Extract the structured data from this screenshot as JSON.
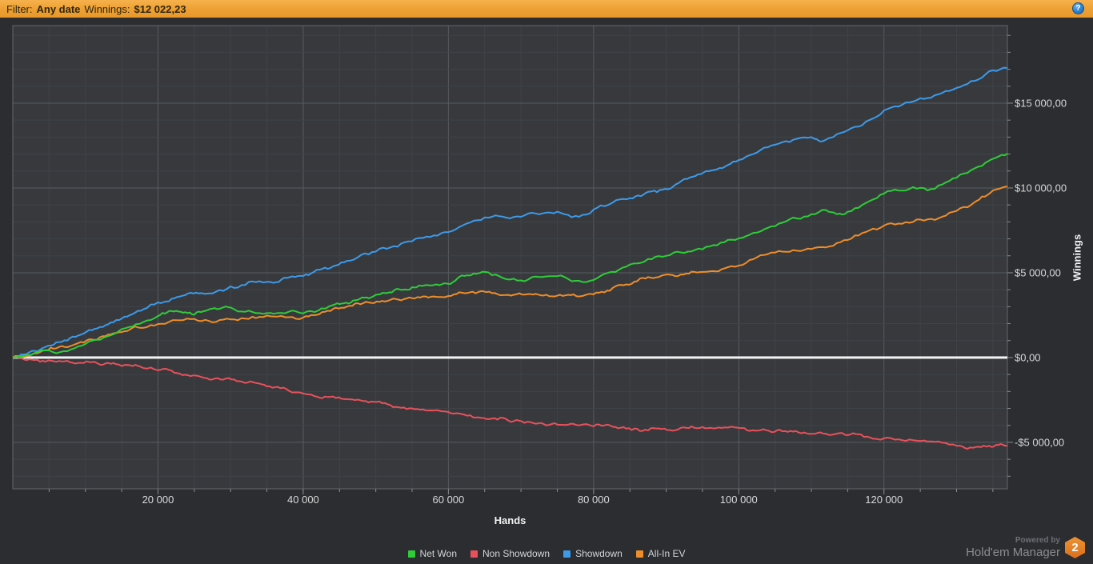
{
  "filter_bar": {
    "label": "Filter:",
    "date_value": "Any date",
    "winnings_label": "Winnings:",
    "winnings_value": "$12 022,23",
    "bar_color": "#eda031",
    "help_icon": "question-mark"
  },
  "chart_data": {
    "type": "line",
    "title": "",
    "xlabel": "Hands",
    "ylabel": "Winnings",
    "xlim": [
      0,
      137000
    ],
    "ylim": [
      -7740,
      19575
    ],
    "x_tick_values": [
      20000,
      40000,
      60000,
      80000,
      100000,
      120000
    ],
    "x_ticks": [
      "20 000",
      "40 000",
      "60 000",
      "80 000",
      "100 000",
      "120 000"
    ],
    "y_tick_values": [
      15000,
      10000,
      5000,
      0,
      -5000
    ],
    "y_ticks": [
      "$15 000,00",
      "$10 000,00",
      "$5 000,00",
      "$0,00",
      "-$5 000,00"
    ],
    "grid": {
      "x_minor_step": 5000,
      "x_major_step": 20000,
      "y_minor_step": 1000,
      "y_major_step": 5000
    },
    "zero_line": true,
    "legend_position": "bottom",
    "colors": {
      "plot_bg": "#37393d",
      "outer_bg": "#2b2d30",
      "grid_minor": "#3f4347",
      "grid_major": "#575b5f",
      "border": "#64686c",
      "zero_line": "#f2f4f4",
      "tick": "#8a8e91"
    },
    "series": [
      {
        "name": "Net Won",
        "color": "#2fcc39",
        "points": [
          [
            0,
            0
          ],
          [
            2000,
            150
          ],
          [
            4000,
            420
          ],
          [
            6000,
            250
          ],
          [
            8000,
            480
          ],
          [
            10000,
            800
          ],
          [
            12000,
            1050
          ],
          [
            14000,
            1400
          ],
          [
            16000,
            1800
          ],
          [
            18000,
            2100
          ],
          [
            20000,
            2450
          ],
          [
            22500,
            2750
          ],
          [
            25000,
            2520
          ],
          [
            27500,
            2880
          ],
          [
            30000,
            2950
          ],
          [
            32000,
            2700
          ],
          [
            34000,
            2620
          ],
          [
            36000,
            2580
          ],
          [
            38000,
            2700
          ],
          [
            40000,
            2600
          ],
          [
            42500,
            2900
          ],
          [
            45000,
            3150
          ],
          [
            47500,
            3400
          ],
          [
            50000,
            3700
          ],
          [
            52500,
            3950
          ],
          [
            55000,
            4150
          ],
          [
            57500,
            4250
          ],
          [
            60000,
            4340
          ],
          [
            62500,
            4850
          ],
          [
            65000,
            5050
          ],
          [
            67000,
            4800
          ],
          [
            69000,
            4650
          ],
          [
            71000,
            4600
          ],
          [
            73000,
            4750
          ],
          [
            75000,
            4800
          ],
          [
            77000,
            4500
          ],
          [
            79000,
            4450
          ],
          [
            80000,
            4575
          ],
          [
            82000,
            5000
          ],
          [
            84000,
            5300
          ],
          [
            86000,
            5550
          ],
          [
            88000,
            5800
          ],
          [
            90000,
            6000
          ],
          [
            92000,
            6200
          ],
          [
            94000,
            6350
          ],
          [
            96000,
            6550
          ],
          [
            98000,
            6800
          ],
          [
            100000,
            7030
          ],
          [
            102000,
            7350
          ],
          [
            104000,
            7650
          ],
          [
            106000,
            7950
          ],
          [
            108000,
            8200
          ],
          [
            110000,
            8450
          ],
          [
            112000,
            8700
          ],
          [
            113500,
            8450
          ],
          [
            115000,
            8600
          ],
          [
            117000,
            9000
          ],
          [
            119000,
            9400
          ],
          [
            120000,
            9670
          ],
          [
            122000,
            9850
          ],
          [
            124000,
            10050
          ],
          [
            126000,
            9850
          ],
          [
            128000,
            10200
          ],
          [
            130000,
            10600
          ],
          [
            132000,
            11050
          ],
          [
            134000,
            11500
          ],
          [
            135500,
            11800
          ],
          [
            137000,
            12022
          ]
        ]
      },
      {
        "name": "Non Showdown",
        "color": "#e8515b",
        "points": [
          [
            0,
            0
          ],
          [
            3000,
            -150
          ],
          [
            6000,
            -250
          ],
          [
            9000,
            -320
          ],
          [
            12000,
            -420
          ],
          [
            15000,
            -500
          ],
          [
            18000,
            -620
          ],
          [
            20000,
            -755
          ],
          [
            23000,
            -950
          ],
          [
            26000,
            -1150
          ],
          [
            29000,
            -1300
          ],
          [
            32000,
            -1500
          ],
          [
            35000,
            -1700
          ],
          [
            38000,
            -1950
          ],
          [
            40000,
            -2120
          ],
          [
            43000,
            -2300
          ],
          [
            46000,
            -2450
          ],
          [
            49000,
            -2650
          ],
          [
            52000,
            -2800
          ],
          [
            55000,
            -3000
          ],
          [
            58000,
            -3120
          ],
          [
            60000,
            -3210
          ],
          [
            63000,
            -3400
          ],
          [
            66000,
            -3600
          ],
          [
            69000,
            -3750
          ],
          [
            72000,
            -3900
          ],
          [
            75000,
            -3950
          ],
          [
            78000,
            -4000
          ],
          [
            80000,
            -4057
          ],
          [
            83000,
            -4100
          ],
          [
            86000,
            -4200
          ],
          [
            89000,
            -4180
          ],
          [
            92000,
            -4150
          ],
          [
            95000,
            -4100
          ],
          [
            98000,
            -4120
          ],
          [
            100000,
            -4150
          ],
          [
            103000,
            -4280
          ],
          [
            106000,
            -4350
          ],
          [
            109000,
            -4420
          ],
          [
            112000,
            -4500
          ],
          [
            115000,
            -4580
          ],
          [
            118000,
            -4700
          ],
          [
            120000,
            -4765
          ],
          [
            122000,
            -4820
          ],
          [
            124000,
            -4870
          ],
          [
            126000,
            -4950
          ],
          [
            128000,
            -5020
          ],
          [
            130000,
            -5200
          ],
          [
            131500,
            -5380
          ],
          [
            133000,
            -5260
          ],
          [
            134500,
            -5200
          ],
          [
            137000,
            -5188
          ]
        ]
      },
      {
        "name": "Showdown",
        "color": "#3d9ae8",
        "points": [
          [
            0,
            0
          ],
          [
            3000,
            400
          ],
          [
            6000,
            900
          ],
          [
            9000,
            1300
          ],
          [
            12000,
            1800
          ],
          [
            15000,
            2300
          ],
          [
            18000,
            2850
          ],
          [
            20000,
            3255
          ],
          [
            23000,
            3600
          ],
          [
            26000,
            3800
          ],
          [
            30000,
            4200
          ],
          [
            34000,
            4500
          ],
          [
            37000,
            4600
          ],
          [
            40000,
            4810
          ],
          [
            43000,
            5300
          ],
          [
            46000,
            5700
          ],
          [
            50000,
            6250
          ],
          [
            54000,
            6800
          ],
          [
            58000,
            7200
          ],
          [
            60000,
            7400
          ],
          [
            62000,
            7800
          ],
          [
            64000,
            8100
          ],
          [
            66000,
            8300
          ],
          [
            68000,
            8250
          ],
          [
            70000,
            8300
          ],
          [
            72000,
            8500
          ],
          [
            74000,
            8550
          ],
          [
            76000,
            8450
          ],
          [
            78000,
            8300
          ],
          [
            80000,
            8726
          ],
          [
            82000,
            9000
          ],
          [
            85000,
            9400
          ],
          [
            88000,
            9800
          ],
          [
            91000,
            10100
          ],
          [
            94000,
            10700
          ],
          [
            97000,
            11100
          ],
          [
            100000,
            11650
          ],
          [
            102000,
            12000
          ],
          [
            104000,
            12400
          ],
          [
            106000,
            12700
          ],
          [
            108000,
            12900
          ],
          [
            110000,
            13000
          ],
          [
            111500,
            12750
          ],
          [
            113000,
            13000
          ],
          [
            115000,
            13400
          ],
          [
            117000,
            13700
          ],
          [
            119000,
            14200
          ],
          [
            120000,
            14575
          ],
          [
            122000,
            14800
          ],
          [
            124000,
            15100
          ],
          [
            126000,
            15300
          ],
          [
            128000,
            15600
          ],
          [
            130000,
            15900
          ],
          [
            132000,
            16300
          ],
          [
            134000,
            16700
          ],
          [
            136000,
            17000
          ],
          [
            137000,
            17075
          ]
        ]
      },
      {
        "name": "All-In EV",
        "color": "#ee8d2a",
        "points": [
          [
            0,
            0
          ],
          [
            3000,
            250
          ],
          [
            6000,
            550
          ],
          [
            9000,
            850
          ],
          [
            12000,
            1200
          ],
          [
            15000,
            1500
          ],
          [
            18000,
            1750
          ],
          [
            20000,
            1980
          ],
          [
            22000,
            2200
          ],
          [
            24000,
            2300
          ],
          [
            26000,
            2150
          ],
          [
            28000,
            2100
          ],
          [
            30000,
            2250
          ],
          [
            32000,
            2300
          ],
          [
            34000,
            2400
          ],
          [
            36000,
            2420
          ],
          [
            38000,
            2380
          ],
          [
            40000,
            2360
          ],
          [
            43000,
            2700
          ],
          [
            46000,
            3000
          ],
          [
            49000,
            3250
          ],
          [
            52000,
            3400
          ],
          [
            55000,
            3500
          ],
          [
            58000,
            3600
          ],
          [
            60000,
            3630
          ],
          [
            63000,
            3850
          ],
          [
            66000,
            3800
          ],
          [
            69000,
            3700
          ],
          [
            72000,
            3750
          ],
          [
            75000,
            3650
          ],
          [
            78000,
            3600
          ],
          [
            80000,
            3726
          ],
          [
            83000,
            4200
          ],
          [
            86000,
            4500
          ],
          [
            89000,
            4750
          ],
          [
            92000,
            4900
          ],
          [
            95000,
            5050
          ],
          [
            98000,
            5250
          ],
          [
            100000,
            5425
          ],
          [
            102000,
            5800
          ],
          [
            104000,
            6100
          ],
          [
            106000,
            6250
          ],
          [
            108000,
            6300
          ],
          [
            110000,
            6400
          ],
          [
            112000,
            6500
          ],
          [
            114000,
            6800
          ],
          [
            116000,
            7200
          ],
          [
            118000,
            7500
          ],
          [
            120000,
            7780
          ],
          [
            122000,
            7900
          ],
          [
            124000,
            8000
          ],
          [
            126000,
            8150
          ],
          [
            128000,
            8300
          ],
          [
            130000,
            8650
          ],
          [
            132000,
            9000
          ],
          [
            133500,
            9500
          ],
          [
            135000,
            9850
          ],
          [
            137000,
            10094
          ]
        ]
      }
    ]
  },
  "branding": {
    "powered_by": "Powered by",
    "name": "Hold'em Manager",
    "badge": "2"
  }
}
